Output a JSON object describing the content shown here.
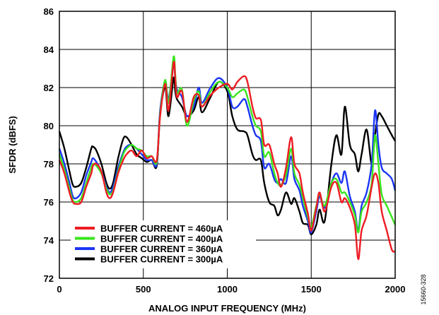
{
  "chart_data": {
    "type": "line",
    "xlabel": "ANALOG INPUT FREQUENCY (MHz)",
    "ylabel": "SFDR (dBFS)",
    "xlim": [
      0,
      2000
    ],
    "ylim": [
      72,
      86
    ],
    "xticks": [
      "0",
      "500",
      "1000",
      "1500",
      "2000"
    ],
    "yticks": [
      "72",
      "74",
      "76",
      "78",
      "80",
      "82",
      "84",
      "86"
    ],
    "grid": true,
    "legend_position": "bottom-left",
    "figure_id": "15660-328",
    "series": [
      {
        "name": "BUFFER CURRENT = 460µA",
        "color": "#ee1c24",
        "x": [
          0,
          30,
          60,
          80,
          100,
          130,
          160,
          190,
          200,
          220,
          250,
          280,
          300,
          320,
          350,
          380,
          400,
          430,
          460,
          490,
          520,
          550,
          580,
          600,
          630,
          650,
          680,
          690,
          700,
          730,
          760,
          800,
          830,
          850,
          900,
          950,
          1000,
          1030,
          1060,
          1100,
          1120,
          1150,
          1170,
          1200,
          1220,
          1250,
          1280,
          1300,
          1320,
          1350,
          1380,
          1400,
          1430,
          1450,
          1480,
          1500,
          1530,
          1550,
          1580,
          1620,
          1650,
          1680,
          1700,
          1730,
          1760,
          1780,
          1800,
          1830,
          1860,
          1880,
          1900,
          1920,
          1950,
          1980,
          2000
        ],
        "y": [
          78.2,
          77.5,
          76.5,
          76.0,
          75.9,
          76.0,
          76.8,
          77.5,
          77.9,
          78.0,
          77.6,
          76.5,
          76.2,
          76.5,
          77.5,
          78.2,
          78.5,
          78.7,
          78.4,
          78.7,
          78.3,
          78.4,
          78.2,
          80.5,
          82.2,
          80.8,
          83.3,
          82.5,
          81.5,
          81.8,
          80.2,
          81.5,
          81.6,
          81.0,
          81.6,
          82.0,
          82.2,
          81.9,
          82.3,
          82.6,
          82.3,
          81.0,
          80.4,
          80.3,
          79.0,
          79.0,
          78.0,
          77.5,
          76.8,
          77.8,
          79.4,
          78.0,
          77.5,
          76.5,
          75.4,
          74.5,
          75.7,
          76.5,
          75.5,
          76.8,
          77.0,
          76.0,
          76.2,
          75.7,
          74.8,
          73.0,
          74.5,
          75.3,
          76.8,
          77.5,
          77.0,
          75.5,
          74.5,
          73.5,
          73.4
        ]
      },
      {
        "name": "BUFFER CURRENT = 400µA",
        "color": "#39e51e",
        "x": [
          0,
          30,
          60,
          80,
          100,
          130,
          160,
          190,
          200,
          220,
          250,
          280,
          300,
          320,
          350,
          380,
          400,
          430,
          460,
          490,
          520,
          550,
          580,
          600,
          630,
          650,
          680,
          690,
          700,
          730,
          760,
          800,
          830,
          850,
          900,
          950,
          1000,
          1030,
          1060,
          1100,
          1120,
          1150,
          1170,
          1200,
          1220,
          1250,
          1280,
          1300,
          1320,
          1350,
          1380,
          1400,
          1430,
          1450,
          1480,
          1500,
          1530,
          1550,
          1580,
          1620,
          1650,
          1680,
          1700,
          1730,
          1760,
          1780,
          1800,
          1830,
          1860,
          1880,
          1900,
          1920,
          1950,
          1980,
          2000
        ],
        "y": [
          78.5,
          77.7,
          76.7,
          76.1,
          76.0,
          76.2,
          77.0,
          77.8,
          78.0,
          77.9,
          77.5,
          76.7,
          76.4,
          76.6,
          77.6,
          78.5,
          78.8,
          79.0,
          78.8,
          78.7,
          78.4,
          78.4,
          78.1,
          80.6,
          82.4,
          81.2,
          83.6,
          82.7,
          81.7,
          81.9,
          80.0,
          81.3,
          81.8,
          81.0,
          81.8,
          82.3,
          82.0,
          81.5,
          81.7,
          81.9,
          81.5,
          80.5,
          80.0,
          79.7,
          78.4,
          78.6,
          77.5,
          77.0,
          76.9,
          77.4,
          78.8,
          77.5,
          76.9,
          76.2,
          75.2,
          74.7,
          75.8,
          76.4,
          75.8,
          77.0,
          77.2,
          76.5,
          76.5,
          76.0,
          75.3,
          74.4,
          75.5,
          76.0,
          77.0,
          79.5,
          78.0,
          76.4,
          75.8,
          75.2,
          74.8
        ]
      },
      {
        "name": "BUFFER CURRENT = 360µA",
        "color": "#1a35f5",
        "x": [
          0,
          30,
          60,
          80,
          100,
          130,
          160,
          190,
          200,
          220,
          250,
          280,
          300,
          320,
          350,
          380,
          400,
          430,
          460,
          490,
          520,
          550,
          580,
          600,
          630,
          650,
          680,
          690,
          700,
          730,
          760,
          800,
          830,
          850,
          900,
          950,
          1000,
          1030,
          1060,
          1100,
          1120,
          1150,
          1170,
          1200,
          1220,
          1250,
          1280,
          1300,
          1320,
          1350,
          1380,
          1400,
          1430,
          1450,
          1480,
          1500,
          1530,
          1550,
          1580,
          1620,
          1650,
          1680,
          1700,
          1730,
          1760,
          1780,
          1800,
          1830,
          1860,
          1880,
          1900,
          1920,
          1950,
          1980,
          2000
        ],
        "y": [
          78.8,
          78.0,
          77.0,
          76.3,
          76.2,
          76.5,
          77.4,
          78.1,
          78.3,
          78.1,
          77.6,
          76.8,
          76.5,
          76.8,
          77.8,
          78.6,
          78.9,
          79.0,
          78.8,
          78.5,
          78.2,
          78.2,
          78.0,
          80.8,
          82.3,
          81.4,
          83.2,
          82.5,
          81.9,
          81.5,
          80.5,
          81.0,
          82.0,
          81.2,
          82.0,
          82.5,
          82.0,
          81.0,
          81.0,
          81.4,
          81.0,
          80.0,
          79.5,
          79.2,
          77.8,
          78.0,
          77.2,
          77.0,
          77.2,
          77.0,
          78.4,
          77.2,
          76.6,
          75.8,
          75.0,
          74.4,
          75.5,
          76.3,
          75.7,
          77.0,
          77.5,
          77.0,
          77.6,
          76.3,
          75.5,
          74.5,
          75.8,
          76.5,
          78.0,
          80.8,
          79.0,
          77.8,
          77.5,
          77.2,
          76.6
        ]
      },
      {
        "name": "BUFFER CURRENT = 300µA",
        "color": "#000000",
        "x": [
          0,
          30,
          60,
          80,
          100,
          130,
          160,
          190,
          200,
          220,
          250,
          280,
          300,
          320,
          350,
          380,
          400,
          430,
          460,
          490,
          520,
          550,
          580,
          600,
          630,
          650,
          680,
          690,
          700,
          730,
          760,
          800,
          830,
          850,
          900,
          950,
          1000,
          1030,
          1060,
          1100,
          1120,
          1150,
          1170,
          1200,
          1220,
          1250,
          1280,
          1300,
          1320,
          1350,
          1380,
          1400,
          1430,
          1450,
          1480,
          1500,
          1530,
          1550,
          1580,
          1620,
          1650,
          1680,
          1700,
          1730,
          1760,
          1780,
          1800,
          1830,
          1860,
          1880,
          1900,
          1920,
          1950,
          1980,
          2000
        ],
        "y": [
          79.7,
          78.8,
          77.6,
          76.9,
          76.8,
          77.0,
          77.8,
          78.8,
          78.9,
          78.7,
          78.0,
          77.0,
          76.7,
          77.0,
          78.3,
          79.3,
          79.4,
          79.0,
          78.5,
          78.3,
          78.1,
          78.2,
          77.9,
          80.6,
          82.0,
          80.5,
          82.5,
          81.8,
          81.4,
          81.0,
          80.5,
          80.8,
          81.5,
          80.7,
          81.5,
          82.3,
          81.8,
          80.5,
          79.8,
          79.7,
          79.5,
          78.5,
          78.2,
          78.2,
          77.0,
          76.0,
          75.8,
          75.3,
          75.6,
          76.5,
          75.9,
          76.2,
          75.5,
          74.9,
          74.8,
          74.3,
          74.8,
          75.6,
          75.0,
          78.0,
          79.5,
          78.5,
          81.0,
          79.0,
          78.5,
          77.6,
          78.5,
          79.8,
          78.0,
          79.5,
          80.6,
          80.5,
          80.0,
          79.5,
          79.2
        ]
      }
    ]
  }
}
